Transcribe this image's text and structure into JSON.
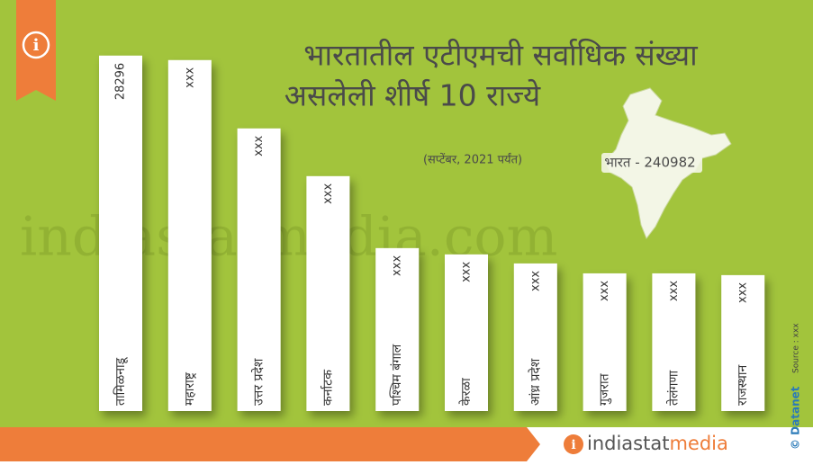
{
  "chart_data": {
    "type": "bar",
    "title_lines": [
      "भारतातील एटीएमची सर्वाधिक संख्या",
      "असलेली शीर्ष 10 राज्ये"
    ],
    "subtitle": "(सप्टेंबर, 2021 पर्यंत)",
    "annotation": "भारत - 240982",
    "categories": [
      "तामिळनाडू",
      "महाराष्ट्र",
      "उत्तर प्रदेश",
      "कर्नाटक",
      "पश्चिम बंगाल",
      "केरळा",
      "आंध्र प्रदेश",
      "गुजरात",
      "तेलंगणा",
      "राजस्थान"
    ],
    "values": [
      28296,
      27940,
      22500,
      18700,
      12970,
      12470,
      11750,
      10960,
      10960,
      10820
    ],
    "value_labels": [
      "28296",
      "xxx",
      "xxx",
      "xxx",
      "xxx",
      "xxx",
      "xxx",
      "xxx",
      "xxx",
      "xxx"
    ],
    "color": "#ffffff",
    "ylim": [
      0,
      30000
    ],
    "watermark": "indiastatmedia.com",
    "footer": {
      "brand_a": "indiastat",
      "brand_b": "media",
      "copyright": "© Datanet",
      "source": "Source : xxx"
    }
  }
}
